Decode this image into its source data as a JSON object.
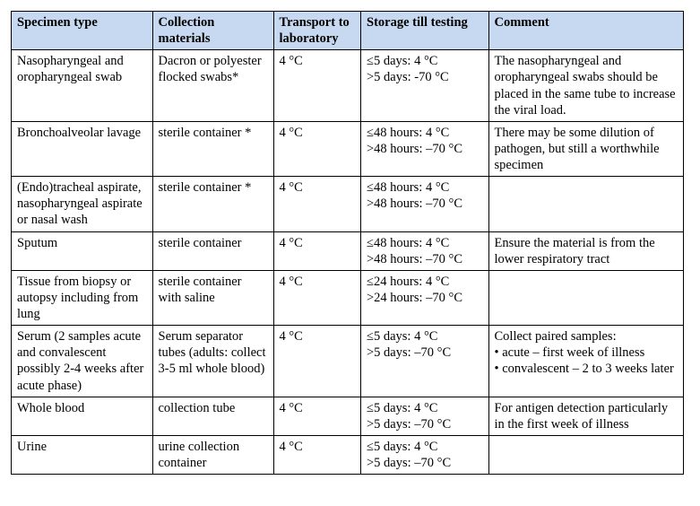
{
  "table": {
    "header_bg": "#c6d9f1",
    "border_color": "#000000",
    "font_family": "Times New Roman",
    "font_size_pt": 11,
    "columns": [
      {
        "label": "Specimen type",
        "width_pct": 21
      },
      {
        "label": "Collection materials",
        "width_pct": 18
      },
      {
        "label": "Transport to laboratory",
        "width_pct": 13
      },
      {
        "label": "Storage till testing",
        "width_pct": 19
      },
      {
        "label": "Comment",
        "width_pct": 29
      }
    ],
    "rows": [
      {
        "specimen": "Nasopharyngeal and oropharyngeal swab",
        "materials": "Dacron or polyester flocked swabs*",
        "transport": "4 °C",
        "storage_a": "≤5 days: 4 °C",
        "storage_b": ">5 days: -70 °C",
        "comment": "The nasopharyngeal and oropharyngeal swabs should be placed in the same tube to increase the viral load."
      },
      {
        "specimen": "Bronchoalveolar lavage",
        "materials": "sterile container *",
        "transport": "4 °C",
        "storage_a": "≤48 hours: 4 °C",
        "storage_b": ">48 hours: –70 °C",
        "comment": "There may be some dilution of pathogen, but still a worthwhile specimen"
      },
      {
        "specimen": "(Endo)tracheal aspirate, nasopharyngeal aspirate or nasal wash",
        "materials": "sterile container *",
        "transport": "4 °C",
        "storage_a": "≤48 hours: 4 °C",
        "storage_b": ">48 hours: –70 °C",
        "comment": ""
      },
      {
        "specimen": "Sputum",
        "materials": "sterile container",
        "transport": "4 °C",
        "storage_a": "≤48 hours: 4 °C",
        "storage_b": ">48 hours: –70 °C",
        "comment": "Ensure the material is from the lower respiratory tract"
      },
      {
        "specimen": "Tissue from biopsy or autopsy including from lung",
        "materials": "sterile container with saline",
        "transport": "4 °C",
        "storage_a": "≤24 hours: 4 °C",
        "storage_b": ">24 hours: –70 °C",
        "comment": ""
      },
      {
        "specimen": "Serum (2 samples acute and convalescent possibly 2-4 weeks after acute phase)",
        "materials": "Serum separator tubes (adults: collect 3-5 ml whole blood)",
        "transport": "4 °C",
        "storage_a": "≤5 days: 4 °C",
        "storage_b": ">5 days: –70 °C",
        "comment": "Collect paired samples:\n• acute – first week of illness\n• convalescent – 2 to 3 weeks later"
      },
      {
        "specimen": "Whole blood",
        "materials": "collection tube",
        "transport": "4 °C",
        "storage_a": "≤5 days: 4 °C",
        "storage_b": ">5 days: –70 °C",
        "comment": "For antigen detection particularly in the first week of illness"
      },
      {
        "specimen": "Urine",
        "materials": "urine collection container",
        "transport": "4 °C",
        "storage_a": "≤5 days: 4 °C",
        "storage_b": ">5 days: –70 °C",
        "comment": ""
      }
    ]
  }
}
